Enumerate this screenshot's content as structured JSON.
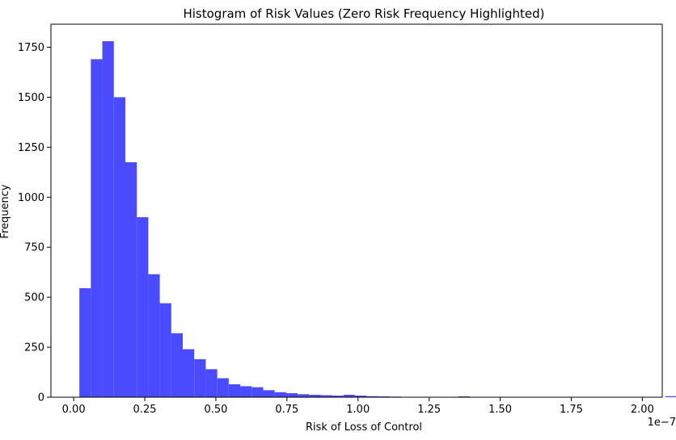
{
  "chart_data": {
    "type": "bar",
    "title": "Histogram of Risk Values (Zero Risk Frequency Highlighted)",
    "xlabel": "Risk of Loss of Control",
    "ylabel": "Frequency",
    "x_offset_label": "1e−7",
    "xlim": [
      -0.08,
      2.07
    ],
    "ylim": [
      0,
      1865
    ],
    "x_ticks": [
      0.0,
      0.25,
      0.5,
      0.75,
      1.0,
      1.25,
      1.5,
      1.75,
      2.0
    ],
    "x_tick_labels": [
      "0.00",
      "0.25",
      "0.50",
      "0.75",
      "1.00",
      "1.25",
      "1.50",
      "1.75",
      "2.00"
    ],
    "y_ticks": [
      0,
      250,
      500,
      750,
      1000,
      1250,
      1500,
      1750
    ],
    "y_tick_labels": [
      "0",
      "250",
      "500",
      "750",
      "1000",
      "1250",
      "1500",
      "1750"
    ],
    "bin_start": 0.02,
    "bin_width": 0.0404,
    "bin_counts": [
      545,
      1690,
      1780,
      1500,
      1175,
      900,
      615,
      470,
      320,
      240,
      190,
      140,
      95,
      65,
      55,
      50,
      35,
      25,
      20,
      15,
      12,
      10,
      8,
      12,
      8,
      5,
      4,
      3,
      2,
      1,
      0,
      0,
      2,
      4,
      1,
      0,
      0,
      0,
      0,
      0,
      0,
      0,
      0,
      0,
      0,
      0,
      0,
      0,
      0,
      0,
      0,
      5
    ],
    "bar_color": "#4a4aff",
    "grid": false,
    "legend": "none"
  }
}
